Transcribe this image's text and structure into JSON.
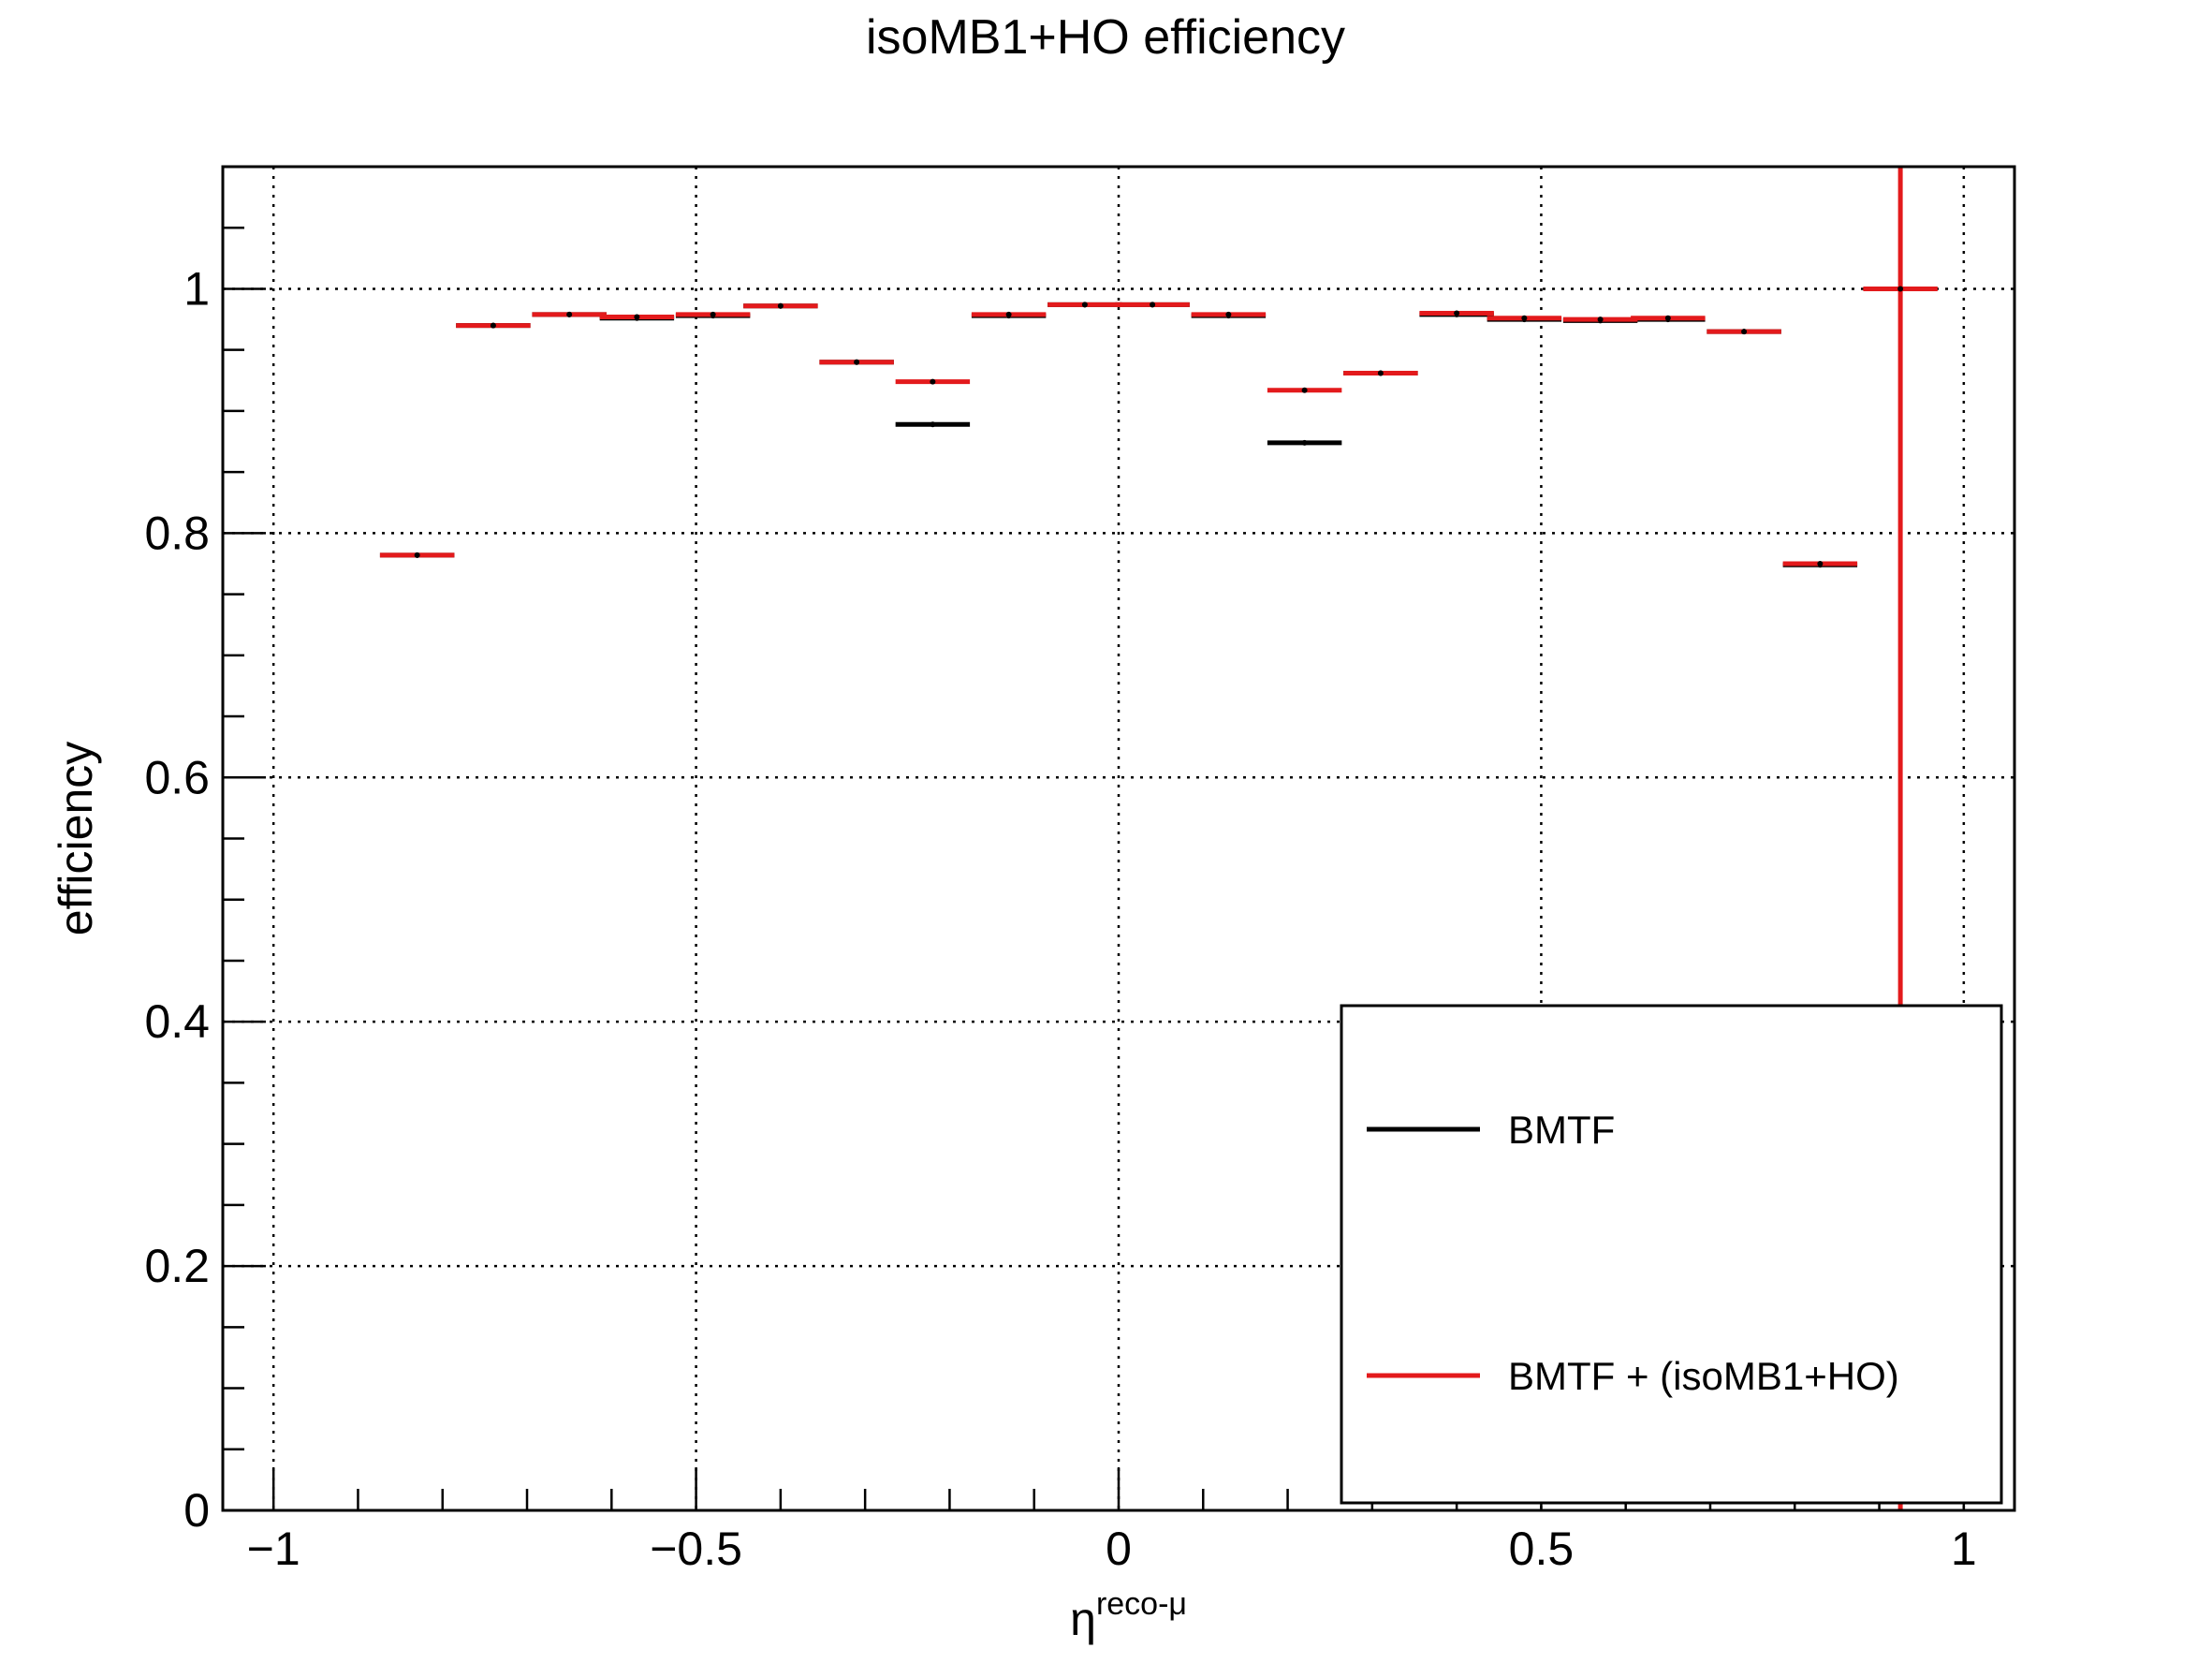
{
  "chart_data": {
    "type": "scatter",
    "title": "isoMB1+HO efficiency",
    "xlabel_main": "η",
    "xlabel_sup": "reco-μ",
    "ylabel": "efficiency",
    "xlim": [
      -1.06,
      1.06
    ],
    "ylim": [
      0,
      1.1
    ],
    "xticks": [
      {
        "value": -1,
        "label": "−1"
      },
      {
        "value": -0.5,
        "label": "−0.5"
      },
      {
        "value": 0,
        "label": "0"
      },
      {
        "value": 0.5,
        "label": "0.5"
      },
      {
        "value": 1,
        "label": "1"
      }
    ],
    "yticks": [
      {
        "value": 0,
        "label": "0"
      },
      {
        "value": 0.2,
        "label": "0.2"
      },
      {
        "value": 0.4,
        "label": "0.4"
      },
      {
        "value": 0.6,
        "label": "0.6"
      },
      {
        "value": 0.8,
        "label": "0.8"
      },
      {
        "value": 1,
        "label": "1"
      }
    ],
    "grid": true,
    "legend_position": "bottom-right",
    "series": [
      {
        "name": "BMTF",
        "color": "#000000",
        "points": [
          {
            "x": -0.83,
            "y": 0.782,
            "xerr": 0.044
          },
          {
            "x": -0.74,
            "y": 0.97,
            "xerr": 0.044
          },
          {
            "x": -0.65,
            "y": 0.979,
            "xerr": 0.044
          },
          {
            "x": -0.57,
            "y": 0.976,
            "xerr": 0.044
          },
          {
            "x": -0.48,
            "y": 0.978,
            "xerr": 0.044
          },
          {
            "x": -0.4,
            "y": 0.986,
            "xerr": 0.044
          },
          {
            "x": -0.31,
            "y": 0.94,
            "xerr": 0.044
          },
          {
            "x": -0.22,
            "y": 0.889,
            "xerr": 0.044
          },
          {
            "x": -0.13,
            "y": 0.978,
            "xerr": 0.044
          },
          {
            "x": -0.04,
            "y": 0.987,
            "xerr": 0.044
          },
          {
            "x": 0.04,
            "y": 0.987,
            "xerr": 0.044
          },
          {
            "x": 0.13,
            "y": 0.978,
            "xerr": 0.044
          },
          {
            "x": 0.22,
            "y": 0.874,
            "xerr": 0.044
          },
          {
            "x": 0.31,
            "y": 0.931,
            "xerr": 0.044
          },
          {
            "x": 0.4,
            "y": 0.979,
            "xerr": 0.044
          },
          {
            "x": 0.48,
            "y": 0.975,
            "xerr": 0.044
          },
          {
            "x": 0.57,
            "y": 0.974,
            "xerr": 0.044
          },
          {
            "x": 0.65,
            "y": 0.975,
            "xerr": 0.044
          },
          {
            "x": 0.74,
            "y": 0.965,
            "xerr": 0.044
          },
          {
            "x": 0.83,
            "y": 0.774,
            "xerr": 0.044
          }
        ]
      },
      {
        "name": "BMTF + (isoMB1+HO)",
        "color": "#e31a1c",
        "points": [
          {
            "x": -0.83,
            "y": 0.782,
            "xerr": 0.044
          },
          {
            "x": -0.74,
            "y": 0.97,
            "xerr": 0.044
          },
          {
            "x": -0.65,
            "y": 0.979,
            "xerr": 0.044
          },
          {
            "x": -0.57,
            "y": 0.977,
            "xerr": 0.044
          },
          {
            "x": -0.48,
            "y": 0.979,
            "xerr": 0.044
          },
          {
            "x": -0.4,
            "y": 0.986,
            "xerr": 0.044
          },
          {
            "x": -0.31,
            "y": 0.94,
            "xerr": 0.044
          },
          {
            "x": -0.22,
            "y": 0.924,
            "xerr": 0.044
          },
          {
            "x": -0.13,
            "y": 0.979,
            "xerr": 0.044
          },
          {
            "x": -0.04,
            "y": 0.987,
            "xerr": 0.044
          },
          {
            "x": 0.04,
            "y": 0.987,
            "xerr": 0.044
          },
          {
            "x": 0.13,
            "y": 0.979,
            "xerr": 0.044
          },
          {
            "x": 0.22,
            "y": 0.917,
            "xerr": 0.044
          },
          {
            "x": 0.31,
            "y": 0.931,
            "xerr": 0.044
          },
          {
            "x": 0.4,
            "y": 0.98,
            "xerr": 0.044
          },
          {
            "x": 0.48,
            "y": 0.976,
            "xerr": 0.044
          },
          {
            "x": 0.57,
            "y": 0.975,
            "xerr": 0.044
          },
          {
            "x": 0.65,
            "y": 0.976,
            "xerr": 0.044
          },
          {
            "x": 0.74,
            "y": 0.965,
            "xerr": 0.044
          },
          {
            "x": 0.83,
            "y": 0.775,
            "xerr": 0.044
          },
          {
            "x": 0.925,
            "y": 1.0,
            "xerr": 0.044,
            "yerr_low": 1.0,
            "yerr_high": 0.1
          }
        ]
      }
    ]
  }
}
